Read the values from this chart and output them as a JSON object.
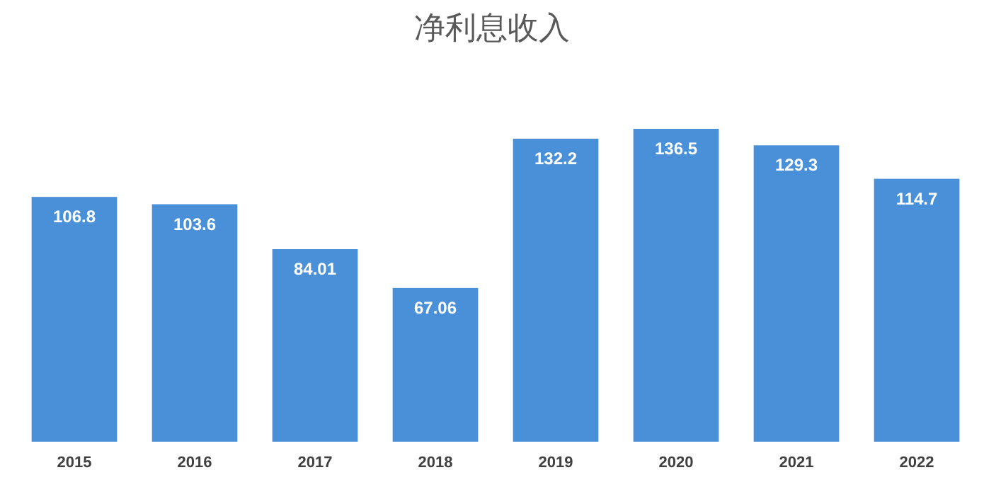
{
  "chart_data": {
    "type": "bar",
    "title": "净利息收入",
    "categories": [
      "2015",
      "2016",
      "2017",
      "2018",
      "2019",
      "2020",
      "2021",
      "2022"
    ],
    "values": [
      106.8,
      103.6,
      84.01,
      67.06,
      132.2,
      136.5,
      129.3,
      114.7
    ],
    "color": "#4a90d9",
    "data_labels": true
  }
}
